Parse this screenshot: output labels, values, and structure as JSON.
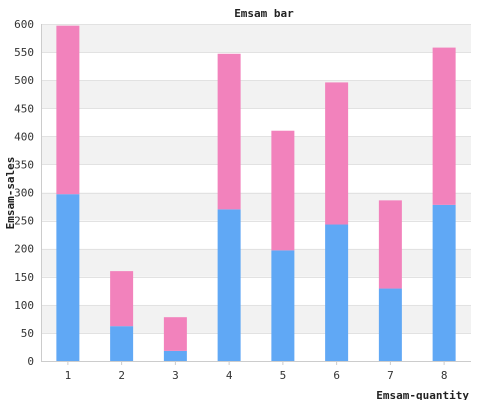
{
  "chart_data": {
    "type": "bar",
    "stacked": true,
    "title": "Emsam bar",
    "xlabel": "Emsam-quantity",
    "ylabel": "Emsam-sales",
    "categories": [
      "1",
      "2",
      "3",
      "4",
      "5",
      "6",
      "7",
      "8"
    ],
    "series": [
      {
        "values": [
          297,
          62,
          18,
          270,
          197,
          243,
          129,
          278
        ],
        "color": "#60a8f5"
      },
      {
        "values": [
          300,
          98,
          60,
          277,
          213,
          253,
          157,
          280
        ],
        "color": "#f282bc"
      }
    ],
    "ylim": [
      0,
      600
    ],
    "yticks": [
      0,
      50,
      100,
      150,
      200,
      250,
      300,
      350,
      400,
      450,
      500,
      550,
      600
    ],
    "grid": true,
    "band_colors": [
      "#f2f2f2",
      "#ffffff"
    ]
  }
}
